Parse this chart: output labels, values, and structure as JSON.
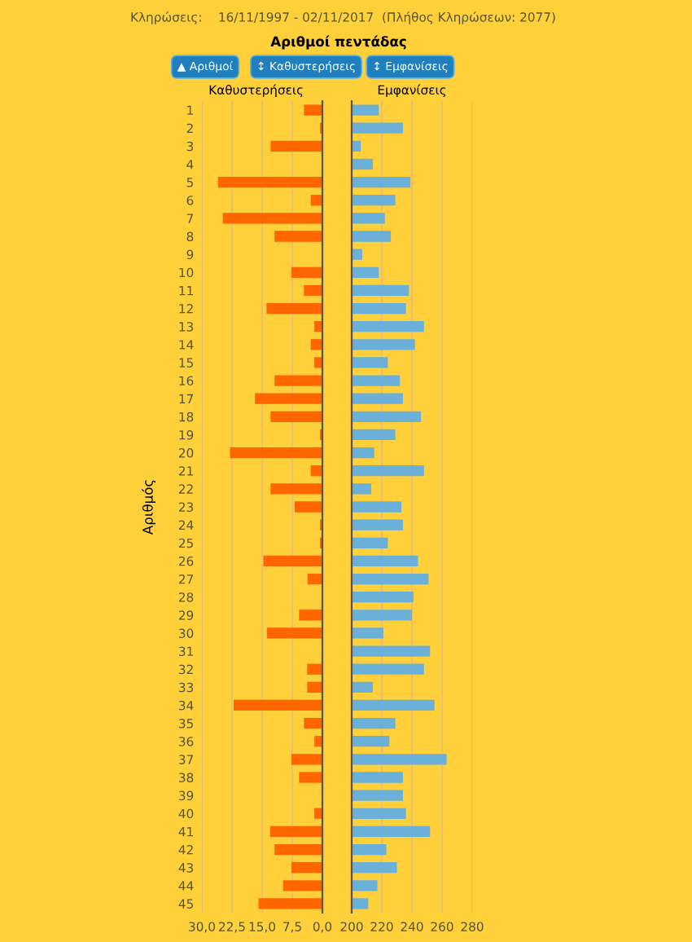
{
  "chart_data": [
    {
      "type": "bar",
      "orientation": "horizontal",
      "subtitle": "Κληρώσεις:    16/11/1997 - 02/11/2017  (Πλήθος Κληρώσεων: 2077)",
      "title": "Αριθμοί πεντάδας",
      "ylabel": "Αριθμός",
      "annotations": [
        "▲ Αριθμοί",
        "↕ Καθυστερήσεις",
        "↕ Εμφανίσεις"
      ],
      "categories": [
        "1",
        "2",
        "3",
        "4",
        "5",
        "6",
        "7",
        "8",
        "9",
        "10",
        "11",
        "12",
        "13",
        "14",
        "15",
        "16",
        "17",
        "18",
        "19",
        "20",
        "21",
        "22",
        "23",
        "24",
        "25",
        "26",
        "27",
        "28",
        "29",
        "30",
        "31",
        "32",
        "33",
        "34",
        "35",
        "36",
        "37",
        "38",
        "39",
        "40",
        "41",
        "42",
        "43",
        "44",
        "45"
      ],
      "series": [
        {
          "name": "Καθυστερήσεις",
          "color": "#ff6600",
          "values": [
            4.6,
            0.6,
            12.9,
            0,
            26.0,
            2.9,
            24.8,
            11.9,
            0,
            7.7,
            4.6,
            13.9,
            2.0,
            2.9,
            2.0,
            11.9,
            16.8,
            12.9,
            0.6,
            23.0,
            2.9,
            12.9,
            6.9,
            0.6,
            0.6,
            14.7,
            3.7,
            0,
            5.8,
            13.8,
            0,
            3.8,
            3.8,
            22.1,
            4.6,
            2.0,
            7.7,
            5.8,
            0,
            2.0,
            13.0,
            11.9,
            7.7,
            9.8,
            15.9
          ]
        }
      ],
      "xlim": [
        30,
        0
      ],
      "xticks": [
        {
          "value": 30,
          "label": "30,0"
        },
        {
          "value": 22.5,
          "label": "22,5"
        },
        {
          "value": 15,
          "label": "15,0"
        },
        {
          "value": 7.5,
          "label": "7,5"
        },
        {
          "value": 0,
          "label": "0,0"
        }
      ],
      "grid": "x"
    },
    {
      "type": "bar",
      "orientation": "horizontal",
      "categories": [
        "1",
        "2",
        "3",
        "4",
        "5",
        "6",
        "7",
        "8",
        "9",
        "10",
        "11",
        "12",
        "13",
        "14",
        "15",
        "16",
        "17",
        "18",
        "19",
        "20",
        "21",
        "22",
        "23",
        "24",
        "25",
        "26",
        "27",
        "28",
        "29",
        "30",
        "31",
        "32",
        "33",
        "34",
        "35",
        "36",
        "37",
        "38",
        "39",
        "40",
        "41",
        "42",
        "43",
        "44",
        "45"
      ],
      "series": [
        {
          "name": "Εμφανίσεις",
          "color": "#6ab0d8",
          "values": [
            218,
            234,
            206,
            214,
            239,
            229,
            222,
            226,
            207,
            218,
            238,
            236,
            248,
            242,
            224,
            232,
            234,
            246,
            229,
            215,
            248,
            213,
            233,
            234,
            224,
            244,
            251,
            241,
            240,
            221,
            252,
            248,
            214,
            255,
            229,
            225,
            263,
            234,
            234,
            236,
            252,
            223,
            230,
            217,
            211
          ]
        }
      ],
      "xlim": [
        200,
        280
      ],
      "xticks": [
        200,
        220,
        240,
        260,
        280
      ],
      "grid": "x",
      "tick_labels": "x"
    }
  ]
}
